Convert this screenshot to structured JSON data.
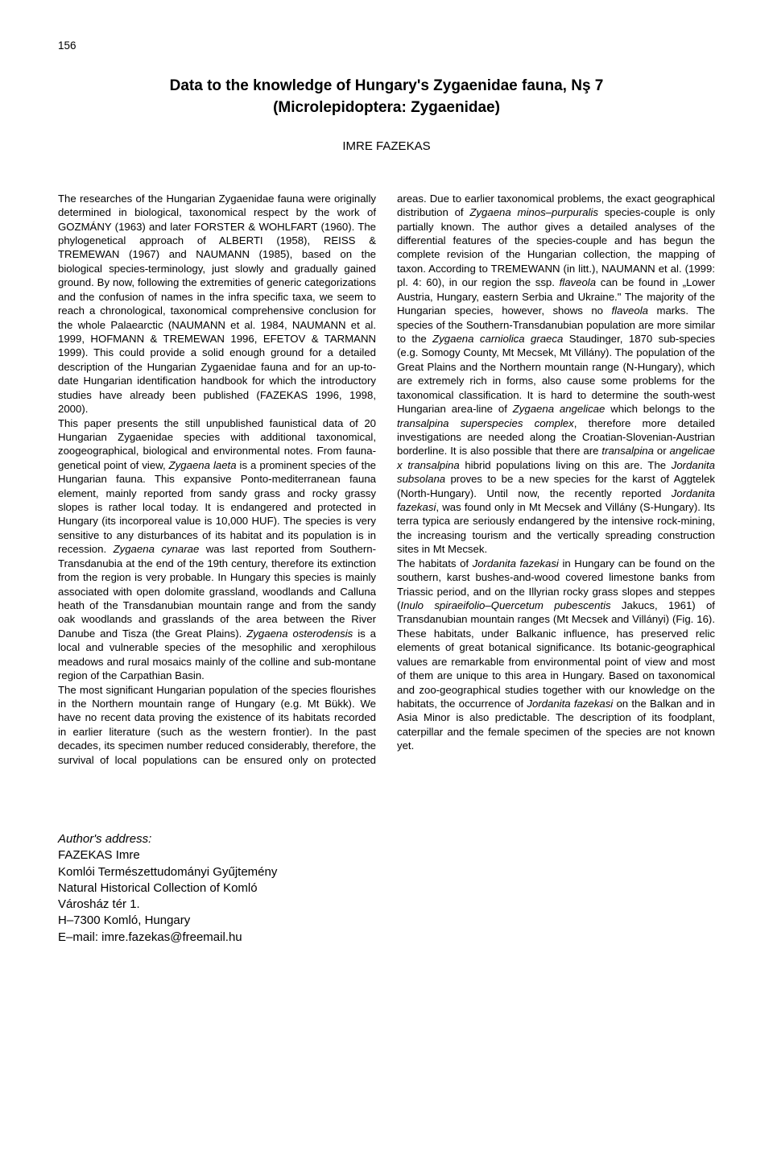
{
  "page_number": "156",
  "title_line1": "Data to the knowledge of Hungary's Zygaenidae fauna, Nş 7",
  "title_line2": "(Microlepidoptera: Zygaenidae)",
  "author": "IMRE FAZEKAS",
  "body_html": "The researches of the Hungarian Zygaenidae fauna were originally determined in biological, taxonomical respect by the work of GOZMÁNY (1963) and later FORSTER & WOHLFART (1960). The phylogenetical approach of ALBERTI (1958), REISS & TREMEWAN (1967) and NAUMANN (1985), based on the biological species-terminology, just slowly and gradually gained ground. By now, following the extremities of generic categorizations and the confusion of names in the infra specific taxa, we seem to reach a chronological, taxonomical comprehensive conclusion for the whole Palaearctic (NAUMANN et al. 1984, NAUMANN et al. 1999, HOFMANN & TREMEWAN 1996, EFETOV & TARMANN 1999). This could provide a solid enough ground for a detailed description of the Hungarian Zygaenidae fauna and for an up-to-date Hungarian identification handbook for which the introductory studies have already been published (FAZEKAS 1996, 1998, 2000).<br>This paper presents the still unpublished faunistical data of 20 Hungarian Zygaenidae species with additional taxonomical, zoogeographical, biological and environmental notes. From fauna-genetical point of view, <span class=\"ital\">Zygaena laeta</span> is a prominent species of the Hungarian fauna. This expansive Ponto-mediterranean fauna element, mainly reported from sandy grass and rocky grassy slopes is rather local today. It is endangered and protected in Hungary (its incorporeal value is 10,000 HUF). The species is very sensitive to any disturbances of its habitat and its population is in recession. <span class=\"ital\">Zygaena cynarae</span> was last reported from Southern-Transdanubia at the end of the 19th century, therefore its extinction from the region is very probable. In Hungary this species is mainly associated with open dolomite grassland, woodlands and Calluna heath of the Transdanubian mountain range and from the sandy oak woodlands and grasslands of the area between the River Danube and Tisza (the Great Plains). <span class=\"ital\">Zygaena osterodensis</span> is a local and vulnerable species of the mesophilic and xerophilous meadows and rural mosaics mainly of the colline and sub-montane region of the Carpathian Basin.<br>The most significant Hungarian population of the species flourishes in the Northern mountain range of Hungary (e.g. Mt Bükk). We have no recent data proving the existence of its habitats recorded in earlier literature (such as the western frontier). In the past decades, its specimen number reduced considerably, therefore, the survival of local populations can be ensured only on protected areas. Due to earlier taxonomical problems, the exact geographical distribution of <span class=\"ital\">Zygaena minos–purpuralis</span> species-couple is only partially known. The author gives a detailed analyses of the differential features of the species-couple and has begun the complete revision of the Hungarian collection, the mapping of taxon. According to TREMEWANN (in litt.), NAUMANN et al. (1999: pl. 4: 60), in our region the ssp. <span class=\"ital\">flaveola</span> can be found in „Lower Austria, Hungary, eastern Serbia and Ukraine.\" The majority of the Hungarian species, however, shows no <span class=\"ital\">flaveola</span> marks. The species of the Southern-Transdanubian population are more similar to the <span class=\"ital\">Zygaena carniolica graeca</span> Staudinger, 1870 sub-species (e.g. Somogy County, Mt Mecsek, Mt Villány). The population of the Great Plains and the Northern mountain range (N-Hungary), which are extremely rich in forms, also cause some problems for the taxonomical classification. It is hard to determine the south-west Hungarian area-line of <span class=\"ital\">Zygaena angelicae</span> which belongs to the <span class=\"ital\">transalpina superspecies complex</span>, therefore more detailed investigations are needed along the Croatian-Slovenian-Austrian borderline. It is also possible that there are <span class=\"ital\">transalpina</span> or <span class=\"ital\">angelicae x transalpina</span> hibrid populations living on this are. The <span class=\"ital\">Jordanita subsolana</span> proves to be a new species for the karst of Aggtelek (North-Hungary). Until now, the recently reported <span class=\"ital\">Jordanita fazekasi</span>, was found only in Mt Mecsek and Villány (S-Hungary). Its terra typica are seriously endangered by the intensive rock-mining, the increasing tourism and the vertically spreading construction sites in Mt Mecsek.<br>The habitats of <span class=\"ital\">Jordanita fazekasi</span> in Hungary can be found on the southern, karst bushes-and-wood covered limestone banks from Triassic period, and on the Illyrian rocky grass slopes and steppes (<span class=\"ital\">Inulo spiraeifolio–Quercetum pubescentis</span> Jakucs, 1961) of Transdanubian mountain ranges (Mt Mecsek and Villányi) (Fig. 16). These habitats, under Balkanic influence, has preserved relic elements of great botanical significance. Its botanic-geographical values are remarkable from environmental point of view and most of them are unique to this area in Hungary. Based on taxonomical and zoo-geographical studies together with our knowledge on the habitats, the occurrence of <span class=\"ital\">Jordanita fazekasi</span> on the Balkan and in Asia Minor is also predictable. The description of its foodplant, caterpillar and the female specimen of the species are not known yet.",
  "address": {
    "label": "Author's address:",
    "name": "FAZEKAS Imre",
    "inst_hu": "Komlói Természettudományi Gyűjtemény",
    "inst_en": "Natural Historical Collection of Komló",
    "street": "Városház tér 1.",
    "city": "H–7300 Komló, Hungary",
    "email": "E–mail: imre.fazekas@freemail.hu"
  }
}
